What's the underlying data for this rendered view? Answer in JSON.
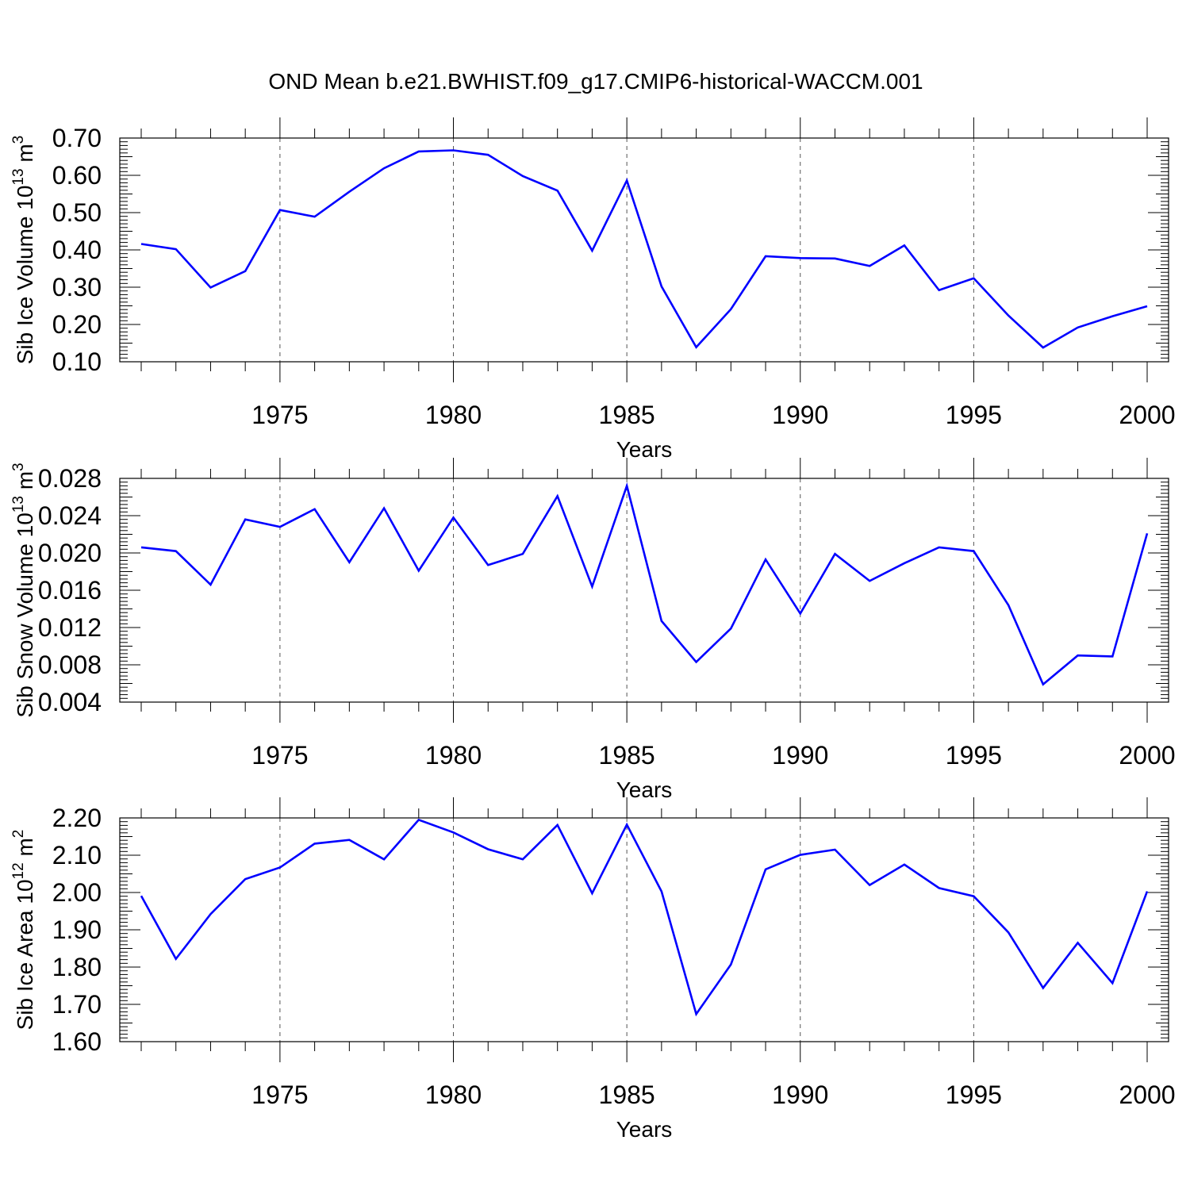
{
  "title": "OND Mean b.e21.BWHIST.f09_g17.CMIP6-historical-WACCM.001",
  "line_color": "#0000ff",
  "chart_data": [
    {
      "type": "line",
      "ylabel": "Sib Ice Volume 10",
      "ylabel_exp": "13",
      "ylabel_unit": " m",
      "ylabel_unit_exp": "3",
      "xlabel": "Years",
      "xlim": [
        1971,
        2000
      ],
      "ylim": [
        0.1,
        0.7
      ],
      "yticks": [
        "0.10",
        "0.20",
        "0.30",
        "0.40",
        "0.50",
        "0.60",
        "0.70"
      ],
      "xticks": [
        "1975",
        "1980",
        "1985",
        "1990",
        "1995",
        "2000"
      ],
      "grid": "dashed vertical at major x ticks",
      "x": [
        1971,
        1972,
        1973,
        1974,
        1975,
        1976,
        1977,
        1978,
        1979,
        1980,
        1981,
        1982,
        1983,
        1984,
        1985,
        1986,
        1987,
        1988,
        1989,
        1990,
        1991,
        1992,
        1993,
        1994,
        1995,
        1996,
        1997,
        1998,
        1999,
        2000
      ],
      "series": [
        {
          "values": [
            0.416,
            0.402,
            0.299,
            0.343,
            0.507,
            0.489,
            0.556,
            0.619,
            0.664,
            0.667,
            0.655,
            0.598,
            0.559,
            0.398,
            0.586,
            0.302,
            0.139,
            0.241,
            0.383,
            0.378,
            0.377,
            0.357,
            0.412,
            0.292,
            0.324,
            0.224,
            0.138,
            0.192,
            0.222,
            0.249
          ]
        }
      ]
    },
    {
      "type": "line",
      "ylabel": "Sib Snow Volume 10",
      "ylabel_exp": "13",
      "ylabel_unit": " m",
      "ylabel_unit_exp": "3",
      "xlabel": "Years",
      "xlim": [
        1971,
        2000
      ],
      "ylim": [
        0.004,
        0.028
      ],
      "yticks": [
        "0.004",
        "0.008",
        "0.012",
        "0.016",
        "0.020",
        "0.024",
        "0.028"
      ],
      "xticks": [
        "1975",
        "1980",
        "1985",
        "1990",
        "1995",
        "2000"
      ],
      "grid": "dashed vertical at major x ticks",
      "x": [
        1971,
        1972,
        1973,
        1974,
        1975,
        1976,
        1977,
        1978,
        1979,
        1980,
        1981,
        1982,
        1983,
        1984,
        1985,
        1986,
        1987,
        1988,
        1989,
        1990,
        1991,
        1992,
        1993,
        1994,
        1995,
        1996,
        1997,
        1998,
        1999,
        2000
      ],
      "series": [
        {
          "values": [
            0.0206,
            0.0202,
            0.0166,
            0.0236,
            0.0228,
            0.0247,
            0.019,
            0.0248,
            0.0181,
            0.0238,
            0.0187,
            0.0199,
            0.0261,
            0.0164,
            0.0272,
            0.0127,
            0.0083,
            0.0119,
            0.0193,
            0.0135,
            0.0199,
            0.017,
            0.0189,
            0.0206,
            0.0202,
            0.0144,
            0.0059,
            0.009,
            0.0089,
            0.0221
          ]
        }
      ]
    },
    {
      "type": "line",
      "ylabel": "Sib Ice Area 10",
      "ylabel_exp": "12",
      "ylabel_unit": " m",
      "ylabel_unit_exp": "2",
      "xlabel": "Years",
      "xlim": [
        1971,
        2000
      ],
      "ylim": [
        1.6,
        2.2
      ],
      "yticks": [
        "1.60",
        "1.70",
        "1.80",
        "1.90",
        "2.00",
        "2.10",
        "2.20"
      ],
      "xticks": [
        "1975",
        "1980",
        "1985",
        "1990",
        "1995",
        "2000"
      ],
      "grid": "dashed vertical at major x ticks",
      "x": [
        1971,
        1972,
        1973,
        1974,
        1975,
        1976,
        1977,
        1978,
        1979,
        1980,
        1981,
        1982,
        1983,
        1984,
        1985,
        1986,
        1987,
        1988,
        1989,
        1990,
        1991,
        1992,
        1993,
        1994,
        1995,
        1996,
        1997,
        1998,
        1999,
        2000
      ],
      "series": [
        {
          "values": [
            1.991,
            1.822,
            1.942,
            2.036,
            2.067,
            2.131,
            2.141,
            2.089,
            2.195,
            2.161,
            2.116,
            2.089,
            2.181,
            1.998,
            2.182,
            2.003,
            1.674,
            1.807,
            2.062,
            2.101,
            2.115,
            2.02,
            2.075,
            2.012,
            1.99,
            1.893,
            1.744,
            1.865,
            1.757,
            2.003
          ]
        }
      ]
    }
  ]
}
